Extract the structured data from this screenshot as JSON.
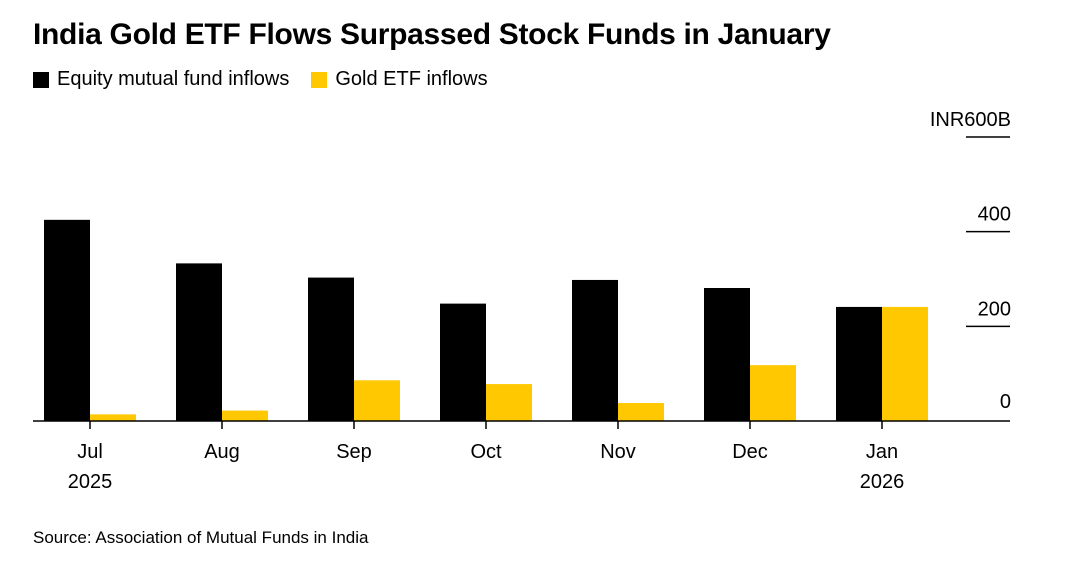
{
  "colors": {
    "equity": "#000000",
    "gold": "#FFC800",
    "axis": "#000000"
  },
  "chart_data": {
    "type": "bar",
    "title": "India Gold ETF Flows Surpassed Stock Funds in January",
    "categories": [
      "Jul",
      "Aug",
      "Sep",
      "Oct",
      "Nov",
      "Dec",
      "Jan"
    ],
    "category_sublabels": [
      "2025",
      "",
      "",
      "",
      "",
      "",
      "2026"
    ],
    "series": [
      {
        "name": "Equity mutual fund inflows",
        "values": [
          425,
          333,
          303,
          248,
          298,
          281,
          241
        ]
      },
      {
        "name": "Gold ETF inflows",
        "values": [
          14,
          22,
          86,
          78,
          38,
          118,
          241
        ]
      }
    ],
    "ylim": [
      0,
      600
    ],
    "yticks": [
      0,
      200,
      400,
      600
    ],
    "ytick_labels": [
      "0",
      "200",
      "400",
      "INR600B"
    ],
    "xlabel": "",
    "ylabel": "INR600B",
    "legend_position": "top-left"
  },
  "source": "Source: Association of Mutual Funds in India"
}
